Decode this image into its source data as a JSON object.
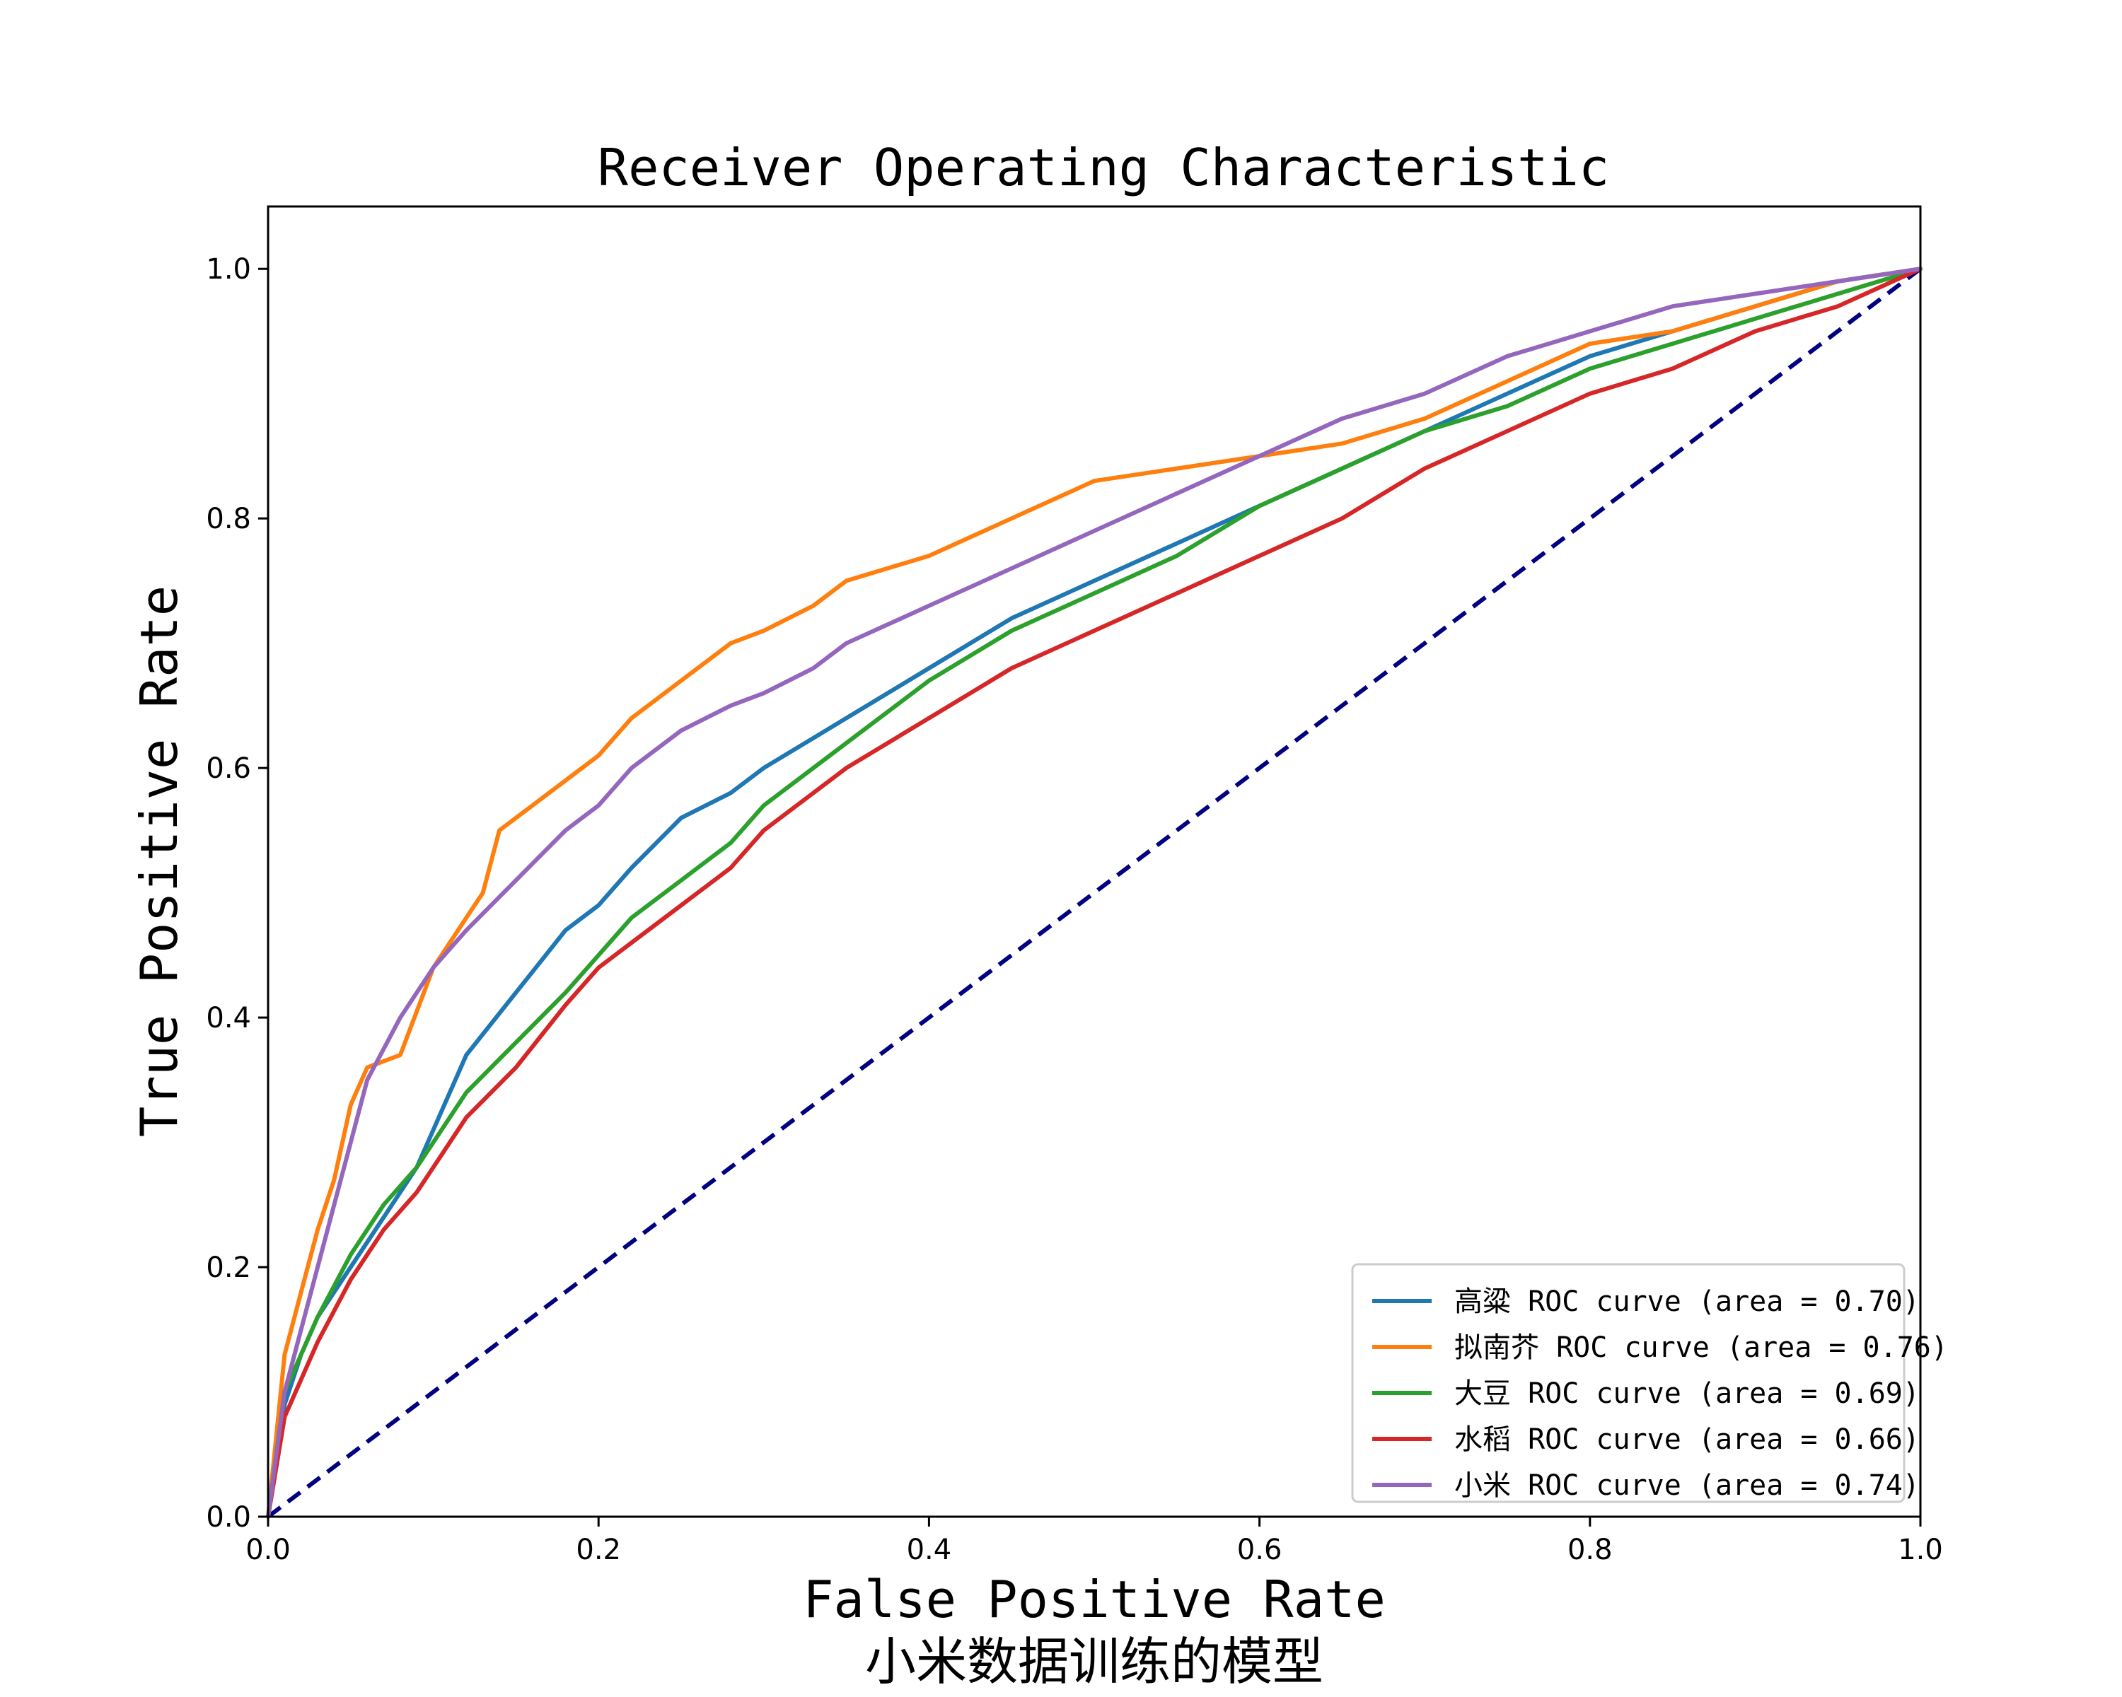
{
  "chart_data": {
    "type": "line",
    "title": "Receiver Operating Characteristic",
    "xlabel": "False Positive Rate",
    "ylabel": "True Positive Rate",
    "caption": "小米数据训练的模型",
    "xlim": [
      0.0,
      1.0
    ],
    "ylim": [
      0.0,
      1.05
    ],
    "xticks": [
      "0.0",
      "0.2",
      "0.4",
      "0.6",
      "0.8",
      "1.0"
    ],
    "yticks": [
      "0.0",
      "0.2",
      "0.4",
      "0.6",
      "0.8",
      "1.0"
    ],
    "grid": false,
    "legend_position": "bottom-right",
    "series": [
      {
        "name": "高粱 ROC curve (area = 0.70)",
        "color": "#1f77b4",
        "x": [
          0,
          0.01,
          0.02,
          0.03,
          0.05,
          0.07,
          0.09,
          0.1,
          0.12,
          0.15,
          0.18,
          0.2,
          0.22,
          0.25,
          0.28,
          0.3,
          0.35,
          0.4,
          0.45,
          0.5,
          0.55,
          0.6,
          0.65,
          0.7,
          0.75,
          0.8,
          0.85,
          0.9,
          0.95,
          1.0
        ],
        "y": [
          0,
          0.09,
          0.13,
          0.16,
          0.2,
          0.24,
          0.28,
          0.31,
          0.37,
          0.42,
          0.47,
          0.49,
          0.52,
          0.56,
          0.58,
          0.6,
          0.64,
          0.68,
          0.72,
          0.75,
          0.78,
          0.81,
          0.84,
          0.87,
          0.9,
          0.93,
          0.95,
          0.97,
          0.99,
          1.0
        ]
      },
      {
        "name": "拟南芥 ROC curve (area = 0.76)",
        "color": "#ff7f0e",
        "x": [
          0,
          0.01,
          0.02,
          0.03,
          0.04,
          0.05,
          0.06,
          0.08,
          0.1,
          0.12,
          0.13,
          0.14,
          0.16,
          0.18,
          0.2,
          0.22,
          0.25,
          0.28,
          0.3,
          0.33,
          0.35,
          0.4,
          0.45,
          0.5,
          0.55,
          0.6,
          0.65,
          0.7,
          0.75,
          0.8,
          0.85,
          0.9,
          0.95,
          1.0
        ],
        "y": [
          0,
          0.13,
          0.18,
          0.23,
          0.27,
          0.33,
          0.36,
          0.37,
          0.44,
          0.48,
          0.5,
          0.55,
          0.57,
          0.59,
          0.61,
          0.64,
          0.67,
          0.7,
          0.71,
          0.73,
          0.75,
          0.77,
          0.8,
          0.83,
          0.84,
          0.85,
          0.86,
          0.88,
          0.91,
          0.94,
          0.95,
          0.97,
          0.99,
          1.0
        ]
      },
      {
        "name": "大豆 ROC curve (area = 0.69)",
        "color": "#2ca02c",
        "x": [
          0,
          0.01,
          0.02,
          0.03,
          0.05,
          0.07,
          0.09,
          0.1,
          0.12,
          0.15,
          0.18,
          0.2,
          0.22,
          0.25,
          0.28,
          0.3,
          0.35,
          0.4,
          0.45,
          0.5,
          0.55,
          0.6,
          0.65,
          0.7,
          0.75,
          0.8,
          0.85,
          0.9,
          0.95,
          1.0
        ],
        "y": [
          0,
          0.1,
          0.13,
          0.16,
          0.21,
          0.25,
          0.28,
          0.3,
          0.34,
          0.38,
          0.42,
          0.45,
          0.48,
          0.51,
          0.54,
          0.57,
          0.62,
          0.67,
          0.71,
          0.74,
          0.77,
          0.81,
          0.84,
          0.87,
          0.89,
          0.92,
          0.94,
          0.96,
          0.98,
          1.0
        ]
      },
      {
        "name": "水稻 ROC curve (area = 0.66)",
        "color": "#d62728",
        "x": [
          0,
          0.01,
          0.02,
          0.03,
          0.05,
          0.07,
          0.09,
          0.1,
          0.12,
          0.15,
          0.18,
          0.2,
          0.22,
          0.25,
          0.28,
          0.3,
          0.35,
          0.4,
          0.45,
          0.5,
          0.55,
          0.6,
          0.65,
          0.7,
          0.75,
          0.8,
          0.85,
          0.9,
          0.95,
          1.0
        ],
        "y": [
          0,
          0.08,
          0.11,
          0.14,
          0.19,
          0.23,
          0.26,
          0.28,
          0.32,
          0.36,
          0.41,
          0.44,
          0.46,
          0.49,
          0.52,
          0.55,
          0.6,
          0.64,
          0.68,
          0.71,
          0.74,
          0.77,
          0.8,
          0.84,
          0.87,
          0.9,
          0.92,
          0.95,
          0.97,
          1.0
        ]
      },
      {
        "name": "小米 ROC curve (area = 0.74)",
        "color": "#9467bd",
        "x": [
          0,
          0.01,
          0.02,
          0.03,
          0.04,
          0.05,
          0.06,
          0.08,
          0.1,
          0.12,
          0.15,
          0.18,
          0.2,
          0.22,
          0.25,
          0.28,
          0.3,
          0.33,
          0.35,
          0.4,
          0.45,
          0.5,
          0.55,
          0.6,
          0.65,
          0.7,
          0.75,
          0.8,
          0.85,
          0.9,
          0.95,
          1.0
        ],
        "y": [
          0,
          0.1,
          0.15,
          0.2,
          0.25,
          0.3,
          0.35,
          0.4,
          0.44,
          0.47,
          0.51,
          0.55,
          0.57,
          0.6,
          0.63,
          0.65,
          0.66,
          0.68,
          0.7,
          0.73,
          0.76,
          0.79,
          0.82,
          0.85,
          0.88,
          0.9,
          0.93,
          0.95,
          0.97,
          0.98,
          0.99,
          1.0
        ]
      }
    ],
    "diagonal": {
      "color": "#000080",
      "x": [
        0,
        1
      ],
      "y": [
        0,
        1
      ]
    }
  }
}
